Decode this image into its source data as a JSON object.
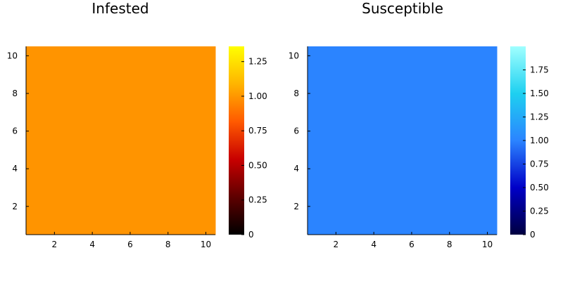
{
  "chart_data": [
    {
      "type": "heatmap",
      "title": "Infested",
      "x": [
        1,
        2,
        3,
        4,
        5,
        6,
        7,
        8,
        9,
        10
      ],
      "y": [
        1,
        2,
        3,
        4,
        5,
        6,
        7,
        8,
        9,
        10
      ],
      "cell_value": 1.0,
      "cell_color": "#ff9400",
      "xticks": [
        "2",
        "4",
        "6",
        "8",
        "10"
      ],
      "yticks": [
        "2",
        "4",
        "6",
        "8",
        "10"
      ],
      "xlim": [
        0.5,
        10.5
      ],
      "ylim": [
        0.5,
        10.5
      ],
      "grid": false,
      "colorbar": {
        "colormap": "heat",
        "range": [
          0,
          1.36
        ],
        "stops": [
          "#000000",
          "#5e0000",
          "#c80000",
          "#ff5a00",
          "#ffb400",
          "#ffff00"
        ],
        "ticks": [
          "0",
          "0.25",
          "0.50",
          "0.75",
          "1.00",
          "1.25"
        ],
        "tick_values": [
          0,
          0.25,
          0.5,
          0.75,
          1.0,
          1.25
        ]
      }
    },
    {
      "type": "heatmap",
      "title": "Susceptible",
      "x": [
        1,
        2,
        3,
        4,
        5,
        6,
        7,
        8,
        9,
        10
      ],
      "y": [
        1,
        2,
        3,
        4,
        5,
        6,
        7,
        8,
        9,
        10
      ],
      "cell_value": 1.0,
      "cell_color": "#2b84ff",
      "xticks": [
        "2",
        "4",
        "6",
        "8",
        "10"
      ],
      "yticks": [
        "2",
        "4",
        "6",
        "8",
        "10"
      ],
      "xlim": [
        0.5,
        10.5
      ],
      "ylim": [
        0.5,
        10.5
      ],
      "grid": false,
      "colorbar": {
        "colormap": "ice",
        "range": [
          0,
          2.0
        ],
        "stops": [
          "#000040",
          "#0000c8",
          "#2b84ff",
          "#1ed0f0",
          "#a0ffff"
        ],
        "ticks": [
          "0",
          "0.25",
          "0.50",
          "0.75",
          "1.00",
          "1.25",
          "1.50",
          "1.75"
        ],
        "tick_values": [
          0,
          0.25,
          0.5,
          0.75,
          1.0,
          1.25,
          1.5,
          1.75
        ]
      }
    }
  ]
}
